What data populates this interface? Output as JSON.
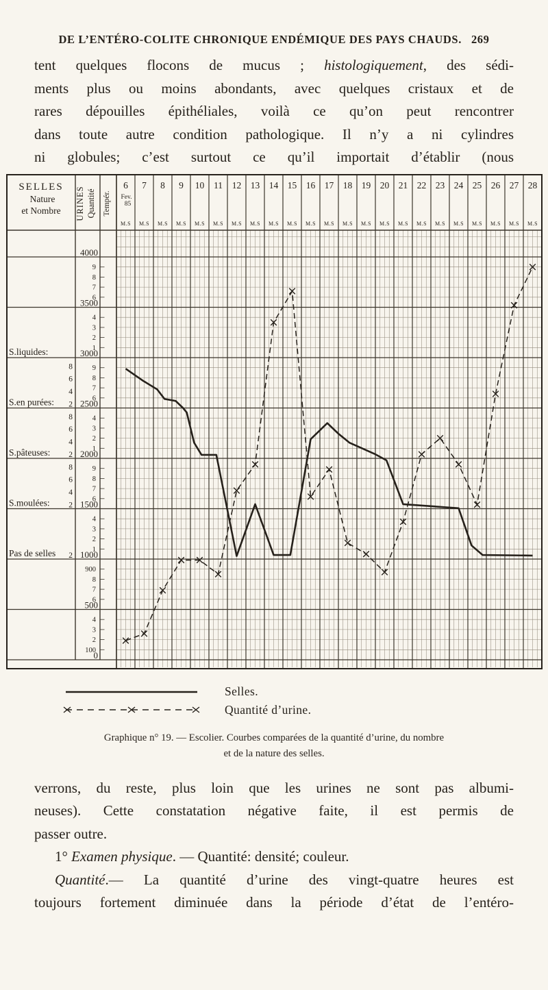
{
  "header": {
    "title": "DE L’ENTÉRO-COLITE CHRONIQUE ENDÉMIQUE DES PAYS CHAUDS.",
    "page_number": "269"
  },
  "paragraphs": {
    "top": [
      {
        "s": [
          {
            "t": "tent quelques flocons de mucus ; "
          },
          {
            "t": "histologiquement",
            "i": true
          },
          {
            "t": ", des sédi-"
          }
        ]
      },
      {
        "s": [
          {
            "t": "ments plus ou moins abondants, avec quelques cristaux et de"
          }
        ]
      },
      {
        "s": [
          {
            "t": "rares dépouilles épithéliales, voilà ce qu’on peut rencontrer"
          }
        ]
      },
      {
        "s": [
          {
            "t": "dans toute autre condition pathologique. Il n’y a ni cylindres"
          }
        ]
      },
      {
        "s": [
          {
            "t": "ni globules; c’est surtout ce qu’il importait d’établir (nous"
          }
        ]
      }
    ],
    "bottom": [
      {
        "s": [
          {
            "t": "verrons, du reste, plus loin que les urines ne sont pas albumi-"
          }
        ]
      },
      {
        "s": [
          {
            "t": "neuses). Cette constatation négative faite, il est permis de"
          }
        ]
      },
      {
        "s": [
          {
            "t": "passer outre."
          }
        ],
        "j": false
      },
      {
        "s": [
          {
            "t": "1° "
          },
          {
            "t": "Examen physique",
            "i": true
          },
          {
            "t": ". — Quantité: densité; couleur."
          }
        ],
        "j": false,
        "ind": true
      },
      {
        "s": [
          {
            "t": "Quantité",
            "i": true
          },
          {
            "t": ".— La quantité d’urine des vingt-quatre heures est"
          }
        ],
        "ind": true
      },
      {
        "s": [
          {
            "t": "toujours fortement diminuée dans la période d’état de l’entéro-"
          }
        ]
      }
    ]
  },
  "chart_labels": {
    "selles_header": [
      "SELLES",
      "Nature",
      "et Nombre"
    ],
    "urines_header": [
      "URINES",
      "Quantité"
    ],
    "temp_header": "Tempér.",
    "first_day_sub": [
      "Fev.",
      "85"
    ],
    "ms_label": "M.S",
    "rows": [
      {
        "selles_counts": [],
        "selles_label": "",
        "urine_minors": [],
        "urine_major": "4000"
      },
      {
        "selles_counts": [],
        "selles_label": "",
        "urine_minors": [
          "9",
          "8",
          "7",
          "6"
        ],
        "urine_major": "3500"
      },
      {
        "selles_counts": [],
        "selles_label": "S.liquides:",
        "urine_minors": [
          "4",
          "3",
          "2",
          "1"
        ],
        "urine_major": "3000"
      },
      {
        "selles_counts": [
          "8",
          "6",
          "4",
          "2"
        ],
        "selles_label": "S.en purées:",
        "urine_minors": [
          "9",
          "8",
          "7",
          "6"
        ],
        "urine_major": "2500"
      },
      {
        "selles_counts": [
          "8",
          "6",
          "4",
          "2"
        ],
        "selles_label": "S.pâteuses:",
        "urine_minors": [
          "4",
          "3",
          "2",
          "1"
        ],
        "urine_major": "2000"
      },
      {
        "selles_counts": [
          "8",
          "6",
          "4",
          "2"
        ],
        "selles_label": "S.moulées:",
        "urine_minors": [
          "9",
          "8",
          "7",
          "6"
        ],
        "urine_major": "1500"
      },
      {
        "selles_counts": [
          "2"
        ],
        "selles_label": "Pas de selles",
        "urine_minors": [
          "4",
          "3",
          "2",
          "1"
        ],
        "urine_major": "1000"
      },
      {
        "selles_counts": [],
        "selles_label": "",
        "urine_minors": [
          "900",
          "8",
          "7",
          "6"
        ],
        "urine_major": "500"
      },
      {
        "selles_counts": [],
        "selles_label": "",
        "urine_minors": [
          "4",
          "3",
          "2",
          "100"
        ],
        "urine_major": "0"
      }
    ]
  },
  "chart_data": {
    "type": "line",
    "title": "Graphique n° 19 — Escolier. Courbes comparées de la quantité d’urine, du nombre et de la nature des selles",
    "x_ticks": [
      "6",
      "7",
      "8",
      "9",
      "10",
      "11",
      "12",
      "13",
      "14",
      "15",
      "16",
      "17",
      "18",
      "19",
      "20",
      "21",
      "22",
      "23",
      "24",
      "25",
      "26",
      "27",
      "28"
    ],
    "x_sub_periods": "M.S",
    "y_urine_axis": {
      "min": 0,
      "max": 4250,
      "major_step": 500,
      "minor_step": 100
    },
    "selles_categories": [
      "S.liquides",
      "S.en purées",
      "S.pâteuses",
      "S.moulées",
      "Pas de selles"
    ],
    "grid": true,
    "legend_position": "below",
    "series": [
      {
        "name": "Selles",
        "style": "solid",
        "points": [
          [
            6,
            2890
          ],
          [
            6.9,
            2775
          ],
          [
            7.7,
            2685
          ],
          [
            8.1,
            2590
          ],
          [
            8.7,
            2570
          ],
          [
            9.1,
            2500
          ],
          [
            9.3,
            2455
          ],
          [
            9.7,
            2155
          ],
          [
            10.1,
            2035
          ],
          [
            10.9,
            2035
          ],
          [
            12,
            1030
          ],
          [
            13,
            1545
          ],
          [
            14,
            1040
          ],
          [
            14.9,
            1040
          ],
          [
            16,
            2190
          ],
          [
            16.9,
            2350
          ],
          [
            17.5,
            2245
          ],
          [
            18.1,
            2155
          ],
          [
            19.5,
            2040
          ],
          [
            20.1,
            1980
          ],
          [
            21,
            1545
          ],
          [
            24,
            1505
          ],
          [
            24.7,
            1135
          ],
          [
            25.3,
            1040
          ],
          [
            28,
            1035
          ]
        ]
      },
      {
        "name": "Quantité d’urine",
        "style": "dashed",
        "marker": "x",
        "points": [
          [
            6,
            190
          ],
          [
            7,
            260
          ],
          [
            8,
            690
          ],
          [
            9,
            990
          ],
          [
            10,
            990
          ],
          [
            11,
            850
          ],
          [
            12,
            1680
          ],
          [
            13,
            1940
          ],
          [
            14,
            3350
          ],
          [
            15,
            3660
          ],
          [
            16,
            1620
          ],
          [
            17,
            1890
          ],
          [
            18,
            1160
          ],
          [
            19,
            1050
          ],
          [
            20,
            870
          ],
          [
            21,
            1370
          ],
          [
            22,
            2040
          ],
          [
            23,
            2200
          ],
          [
            24,
            1940
          ],
          [
            25,
            1540
          ],
          [
            26,
            2640
          ],
          [
            27,
            3520
          ],
          [
            28,
            3900
          ]
        ]
      }
    ]
  },
  "legend": {
    "selles": "Selles.",
    "urine": "Quantité d’urine."
  },
  "caption": {
    "line1": "Graphique n° 19. — Escolier. Courbes comparées de la quantité d’urine, du nombre",
    "line2": "et de la nature des selles."
  },
  "colors": {
    "ink": "#26211b",
    "grid_fine": "#928a7c",
    "grid_bold": "#3b352b",
    "paper": "#f8f5ee"
  }
}
